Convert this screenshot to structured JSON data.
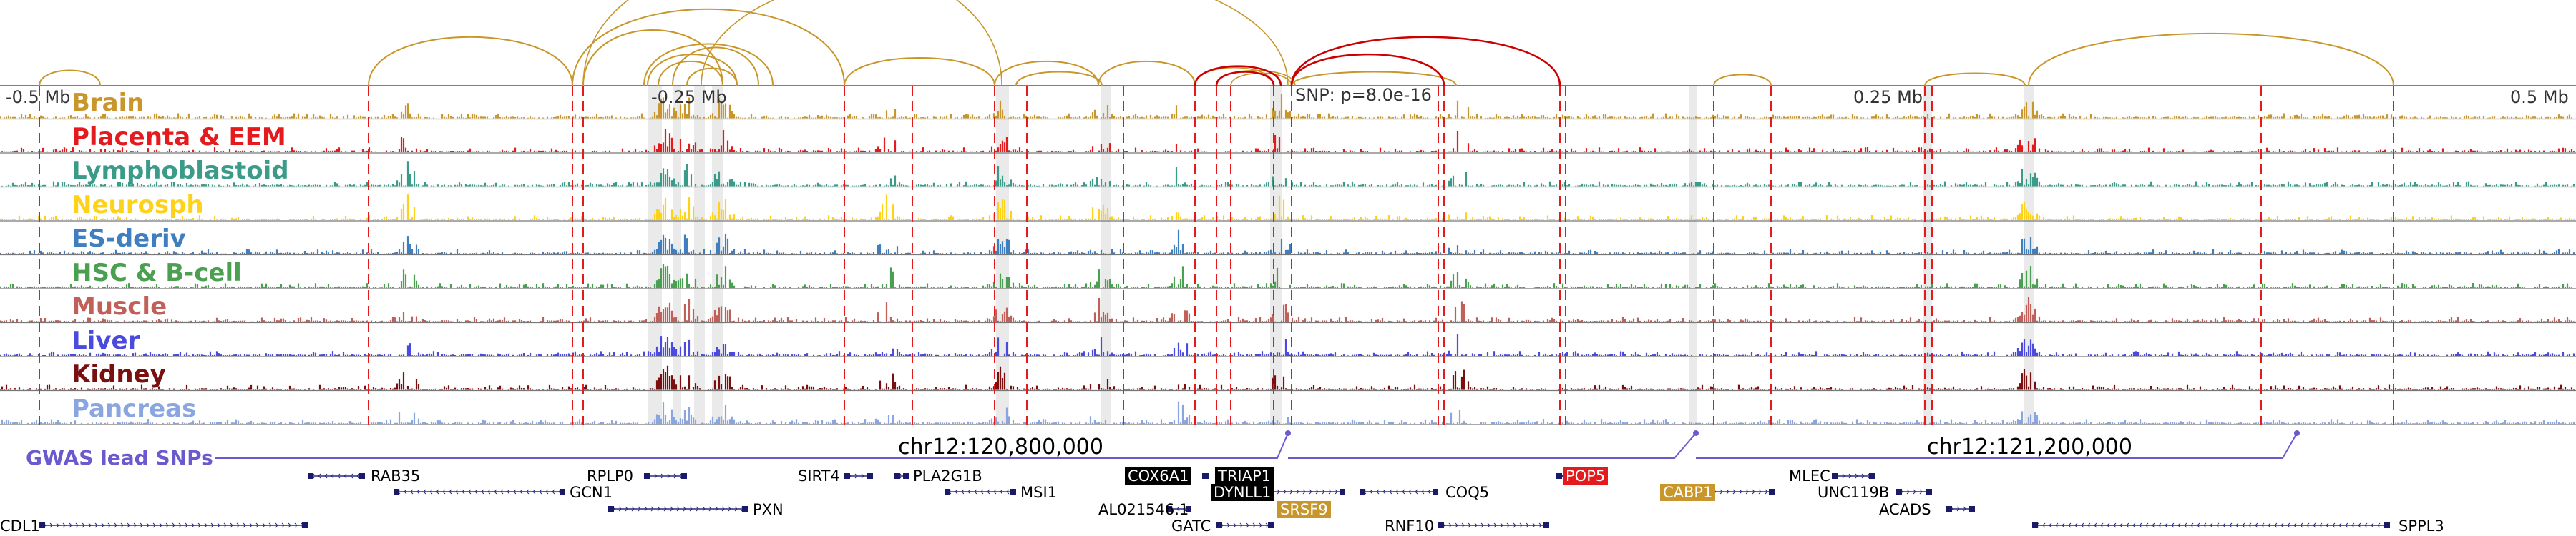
{
  "axis": {
    "ticks": [
      "-0.5 Mb",
      "-0.25 Mb",
      "0.25 Mb",
      "0.5 Mb"
    ],
    "snp_label": "SNP: p=8.0e-16"
  },
  "tracks": [
    {
      "name": "Brain",
      "color": "#c8962a"
    },
    {
      "name": "Placenta & EEM",
      "color": "#e41a1c"
    },
    {
      "name": "Lymphoblastoid",
      "color": "#3a9b89"
    },
    {
      "name": "Neurosph",
      "color": "#ffd21a"
    },
    {
      "name": "ES-deriv",
      "color": "#3f7fbf"
    },
    {
      "name": "HSC & B-cell",
      "color": "#4aa050"
    },
    {
      "name": "Muscle",
      "color": "#c06058"
    },
    {
      "name": "Liver",
      "color": "#4a4ae0"
    },
    {
      "name": "Kidney",
      "color": "#7a0f0f"
    },
    {
      "name": "Pancreas",
      "color": "#8aa6e0"
    }
  ],
  "gwas": {
    "label": "GWAS lead SNPs",
    "color": "#6a5acd"
  },
  "coordinates": [
    "chr12:120,800,000",
    "chr12:121,200,000"
  ],
  "genes": [
    {
      "name": "RAB35",
      "highlight": "none"
    },
    {
      "name": "RPLP0",
      "highlight": "none"
    },
    {
      "name": "GCN1",
      "highlight": "none"
    },
    {
      "name": "PXN",
      "highlight": "none"
    },
    {
      "name": "CDL1",
      "highlight": "none"
    },
    {
      "name": "SIRT4",
      "highlight": "none"
    },
    {
      "name": "PLA2G1B",
      "highlight": "none"
    },
    {
      "name": "MSI1",
      "highlight": "none"
    },
    {
      "name": "COX6A1",
      "highlight": "black"
    },
    {
      "name": "TRIAP1",
      "highlight": "black"
    },
    {
      "name": "DYNLL1",
      "highlight": "black"
    },
    {
      "name": "AL021546.1",
      "highlight": "none"
    },
    {
      "name": "SRSF9",
      "highlight": "gold"
    },
    {
      "name": "GATC",
      "highlight": "none"
    },
    {
      "name": "COQ5",
      "highlight": "none"
    },
    {
      "name": "RNF10",
      "highlight": "none"
    },
    {
      "name": "POP5",
      "highlight": "red"
    },
    {
      "name": "CABP1",
      "highlight": "gold"
    },
    {
      "name": "MLEC",
      "highlight": "none"
    },
    {
      "name": "UNC119B",
      "highlight": "none"
    },
    {
      "name": "ACADS",
      "highlight": "none"
    },
    {
      "name": "SPPL3",
      "highlight": "none"
    }
  ]
}
